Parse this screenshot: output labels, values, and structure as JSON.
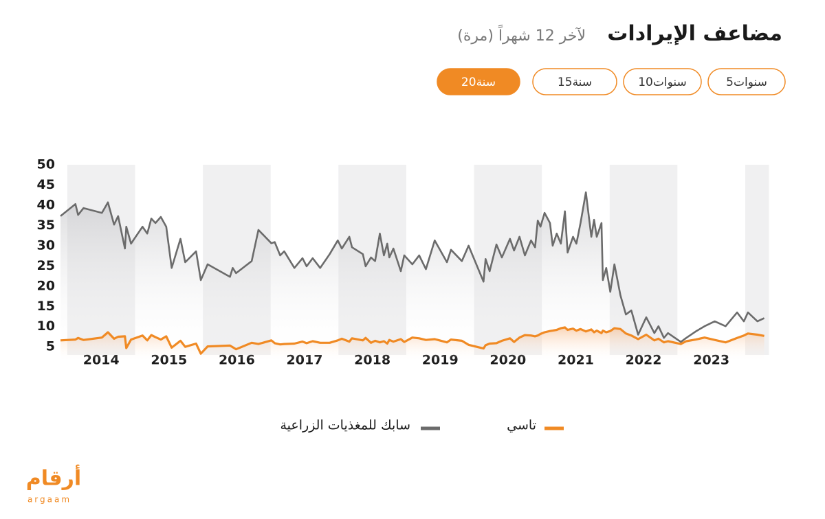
{
  "header": {
    "title": "مضاعف الإيرادات",
    "subtitle": "لآخر 12 شهراً (مرة)"
  },
  "buttons": [
    {
      "label": "5سنوات",
      "active": false
    },
    {
      "label": "10سنوات",
      "active": false
    },
    {
      "label": "15سنة",
      "active": false
    },
    {
      "label": "20سنة",
      "active": true
    }
  ],
  "chart_data": {
    "type": "line",
    "x": [
      2013.9,
      2014.12,
      2014.16,
      2014.24,
      2014.51,
      2014.6,
      2014.69,
      2014.75,
      2014.85,
      2014.87,
      2014.94,
      2015.11,
      2015.18,
      2015.24,
      2015.3,
      2015.38,
      2015.46,
      2015.54,
      2015.67,
      2015.74,
      2015.9,
      2015.97,
      2016.07,
      2016.4,
      2016.44,
      2016.49,
      2016.72,
      2016.82,
      2017.01,
      2017.06,
      2017.14,
      2017.2,
      2017.35,
      2017.47,
      2017.53,
      2017.62,
      2017.73,
      2017.87,
      2017.99,
      2018.05,
      2018.16,
      2018.2,
      2018.36,
      2018.4,
      2018.48,
      2018.54,
      2018.61,
      2018.67,
      2018.72,
      2018.75,
      2018.81,
      2018.92,
      2018.97,
      2019.09,
      2019.19,
      2019.29,
      2019.42,
      2019.6,
      2019.66,
      2019.82,
      2019.92,
      2020.14,
      2020.17,
      2020.23,
      2020.33,
      2020.41,
      2020.53,
      2020.59,
      2020.67,
      2020.75,
      2020.84,
      2020.9,
      2020.94,
      2020.98,
      2021.04,
      2021.12,
      2021.16,
      2021.22,
      2021.28,
      2021.34,
      2021.38,
      2021.46,
      2021.51,
      2021.57,
      2021.65,
      2021.73,
      2021.77,
      2021.81,
      2021.88,
      2021.9,
      2021.95,
      2022.01,
      2022.07,
      2022.16,
      2022.24,
      2022.32,
      2022.42,
      2022.54,
      2022.66,
      2022.72,
      2022.8,
      2022.86,
      2023.05,
      2023.13,
      2023.27,
      2023.4,
      2023.55,
      2023.71,
      2023.88,
      2023.98,
      2024.04,
      2024.18,
      2024.28
    ],
    "series": [
      {
        "name": "سابك للمغذيات الزراعية",
        "color": "#6b6b6b",
        "values": [
          37.3,
          40.3,
          37.6,
          39.3,
          38.1,
          40.7,
          35.2,
          37.3,
          29.3,
          34.7,
          30.5,
          34.7,
          33,
          36.7,
          35.6,
          37.1,
          34.7,
          24.5,
          31.7,
          25.9,
          28.6,
          21.5,
          25.4,
          22.3,
          24.5,
          23.2,
          26.2,
          33.9,
          30.6,
          30.9,
          27.6,
          28.6,
          24.5,
          26.9,
          24.9,
          26.9,
          24.5,
          27.9,
          31.3,
          29.3,
          32.2,
          29.6,
          27.9,
          24.9,
          27.1,
          26.2,
          33,
          27.6,
          30.5,
          27.1,
          29.3,
          23.7,
          27.6,
          25.4,
          27.6,
          24.2,
          31.3,
          25.9,
          29,
          26.2,
          30,
          21.1,
          26.7,
          23.7,
          30.3,
          27.1,
          31.7,
          28.8,
          32.2,
          27.6,
          31.3,
          29.6,
          36.2,
          34.7,
          38.1,
          35.6,
          30,
          33,
          30.5,
          38.5,
          28.3,
          32.2,
          30.5,
          35.6,
          43.2,
          32.2,
          36.4,
          32.2,
          35.6,
          21.5,
          24.5,
          18.6,
          25.4,
          17.7,
          13,
          14,
          8,
          12.3,
          8.4,
          10.1,
          7.2,
          8.4,
          6.2,
          7.2,
          8.8,
          10.1,
          11.3,
          10.1,
          13.5,
          11.3,
          13.5,
          11.3,
          12.1
        ]
      },
      {
        "name": "تاسي",
        "color": "#f08a24",
        "values": [
          6.6,
          6.8,
          7.2,
          6.7,
          7.3,
          8.6,
          7,
          7.5,
          7.6,
          4.7,
          6.8,
          7.8,
          6.6,
          7.9,
          7.4,
          6.8,
          7.6,
          4.8,
          6.5,
          5,
          5.8,
          3.3,
          5.1,
          5.3,
          4.9,
          4.4,
          6,
          5.7,
          6.6,
          5.9,
          5.6,
          5.7,
          5.8,
          6.3,
          5.9,
          6.4,
          6,
          6,
          6.6,
          7,
          6.3,
          7.1,
          6.6,
          7.2,
          6,
          6.5,
          6.1,
          6.4,
          5.8,
          6.7,
          6.3,
          6.9,
          6.2,
          7.3,
          7.1,
          6.7,
          6.9,
          6.1,
          6.8,
          6.5,
          5.5,
          4.6,
          5.4,
          5.8,
          5.9,
          6.5,
          7.1,
          6.2,
          7.3,
          7.9,
          7.8,
          7.6,
          7.8,
          8.2,
          8.6,
          8.9,
          9,
          9.2,
          9.6,
          9.8,
          9.2,
          9.5,
          9,
          9.4,
          8.8,
          9.3,
          8.6,
          9,
          8.4,
          9,
          8.6,
          8.9,
          9.6,
          9.4,
          8.3,
          7.8,
          6.9,
          8,
          6.6,
          7,
          6.1,
          6.4,
          5.7,
          6.4,
          6.8,
          7.3,
          6.7,
          6.1,
          7.2,
          7.8,
          8.3,
          8,
          7.7
        ]
      }
    ],
    "xlim": [
      2013.9,
      2024.35
    ],
    "xticks": [
      {
        "value": 2014.5,
        "label": "2014"
      },
      {
        "value": 2015.5,
        "label": "2015"
      },
      {
        "value": 2016.5,
        "label": "2016"
      },
      {
        "value": 2017.5,
        "label": "2017"
      },
      {
        "value": 2018.5,
        "label": "2018"
      },
      {
        "value": 2019.5,
        "label": "2019"
      },
      {
        "value": 2020.5,
        "label": "2020"
      },
      {
        "value": 2021.5,
        "label": "2021"
      },
      {
        "value": 2022.5,
        "label": "2022"
      },
      {
        "value": 2023.5,
        "label": "2023"
      }
    ],
    "ylim": [
      3,
      50
    ],
    "yticks": [
      5,
      10,
      15,
      20,
      25,
      30,
      35,
      40,
      45,
      50
    ],
    "year_bands": true
  },
  "logo": {
    "name": "أرقام",
    "latin": "argaam"
  }
}
